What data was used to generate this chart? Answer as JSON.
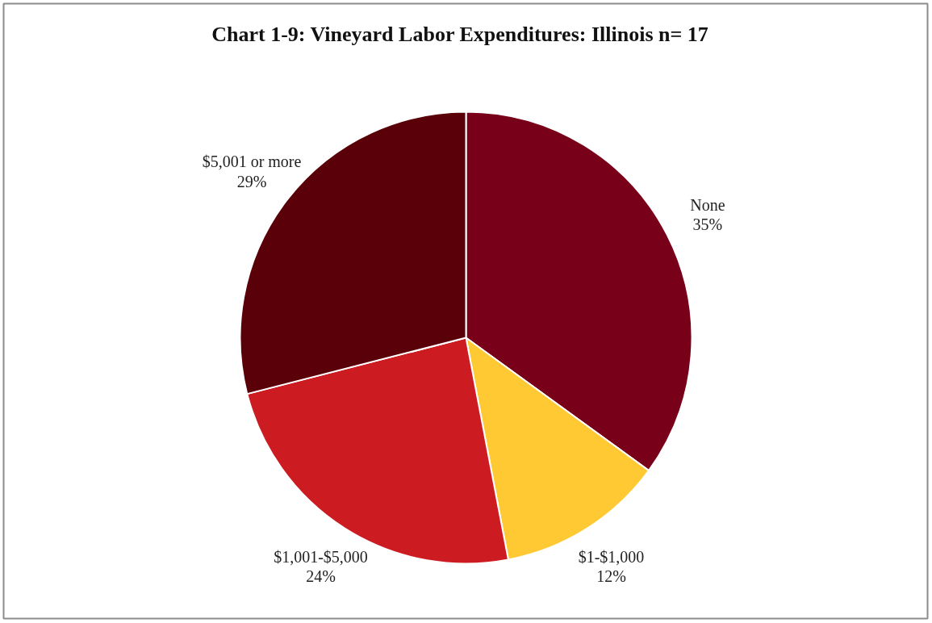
{
  "chart_data": {
    "type": "pie",
    "title": "Chart 1-9: Vineyard Labor Expenditures:  Illinois  n= 17",
    "categories": [
      "None",
      "$1-$1,000",
      "$1,001-$5,000",
      "$5,001 or more"
    ],
    "values": [
      35,
      12,
      24,
      29
    ],
    "value_labels": [
      "35%",
      "12%",
      "24%",
      "29%"
    ],
    "colors": [
      "#780019",
      "#ffc933",
      "#cc1c22",
      "#5a0008"
    ]
  }
}
